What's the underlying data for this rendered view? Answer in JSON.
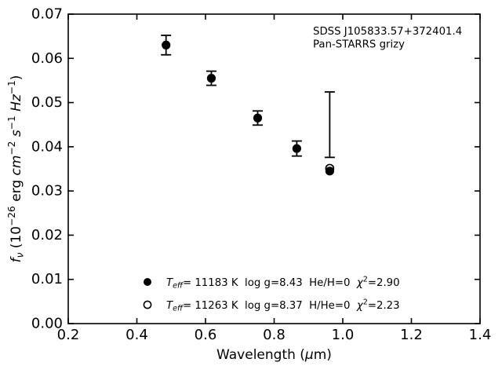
{
  "chart_data": {
    "type": "scatter",
    "title": "",
    "grid": false,
    "colors": {
      "foreground": "#000000",
      "background": "#ffffff"
    },
    "xlim": [
      0.2,
      1.4
    ],
    "ylim": [
      0.0,
      0.07
    ],
    "xticks": {
      "values": [
        0.2,
        0.4,
        0.6,
        0.8,
        1.0,
        1.2,
        1.4
      ],
      "labels": [
        "0.2",
        "0.4",
        "0.6",
        "0.8",
        "1.0",
        "1.2",
        "1.4"
      ]
    },
    "yticks": {
      "values": [
        0.0,
        0.01,
        0.02,
        0.03,
        0.04,
        0.05,
        0.06,
        0.07
      ],
      "labels": [
        "0.00",
        "0.01",
        "0.02",
        "0.03",
        "0.04",
        "0.05",
        "0.06",
        "0.07"
      ]
    },
    "xlabel_parts": [
      {
        "t": "Wavelength ("
      },
      {
        "t": "μ",
        "it": true
      },
      {
        "t": "m)"
      }
    ],
    "ylabel_parts": [
      {
        "t": "f",
        "it": true
      },
      {
        "t": "ν",
        "it": true,
        "sub": true
      },
      {
        "t": " (10"
      },
      {
        "t": "−26",
        "sup": true
      },
      {
        "t": " erg "
      },
      {
        "t": "cm",
        "it": true
      },
      {
        "t": "−2",
        "sup": true
      },
      {
        "t": " "
      },
      {
        "t": "s",
        "it": true
      },
      {
        "t": "−1",
        "sup": true
      },
      {
        "t": " "
      },
      {
        "t": "Hz",
        "it": true
      },
      {
        "t": "−1",
        "sup": true
      },
      {
        "t": ")"
      }
    ],
    "annotation": {
      "line1": "SDSS J105833.57+372401.4",
      "line2": "Pan-STARRS grizy"
    },
    "series": [
      {
        "name": "observed-photometry-errorbars",
        "style": "errorbar",
        "points": [
          {
            "x": 0.485,
            "y": 0.063,
            "yerr": 0.0022
          },
          {
            "x": 0.617,
            "y": 0.0555,
            "yerr": 0.0016
          },
          {
            "x": 0.752,
            "y": 0.0465,
            "yerr": 0.0016
          },
          {
            "x": 0.866,
            "y": 0.0396,
            "yerr": 0.0017
          },
          {
            "x": 0.962,
            "y": 0.045,
            "yerr": 0.0074
          }
        ]
      },
      {
        "name": "model-open-circle",
        "style": "open-circle",
        "points": [
          {
            "x": 0.962,
            "y": 0.0351
          }
        ]
      },
      {
        "name": "model-filled-circle",
        "style": "filled-circle",
        "points": [
          {
            "x": 0.485,
            "y": 0.063
          },
          {
            "x": 0.617,
            "y": 0.0555
          },
          {
            "x": 0.752,
            "y": 0.0465
          },
          {
            "x": 0.866,
            "y": 0.0396
          },
          {
            "x": 0.962,
            "y": 0.0345
          }
        ]
      }
    ],
    "legend": {
      "position": "lower center",
      "entries": [
        {
          "marker": "filled-circle",
          "parts": [
            {
              "t": "T",
              "it": true
            },
            {
              "t": "eff",
              "it": true,
              "sub": true
            },
            {
              "t": "= 11183 K  log g=8.43  He/H=0  "
            },
            {
              "t": "χ",
              "it": true
            },
            {
              "t": "2",
              "sup": true
            },
            {
              "t": "=2.90"
            }
          ]
        },
        {
          "marker": "open-circle",
          "parts": [
            {
              "t": "T",
              "it": true
            },
            {
              "t": "eff",
              "it": true,
              "sub": true
            },
            {
              "t": "= 11263 K  log g=8.37  H/He=0  "
            },
            {
              "t": "χ",
              "it": true
            },
            {
              "t": "2",
              "sup": true
            },
            {
              "t": "=2.23"
            }
          ]
        }
      ]
    }
  }
}
